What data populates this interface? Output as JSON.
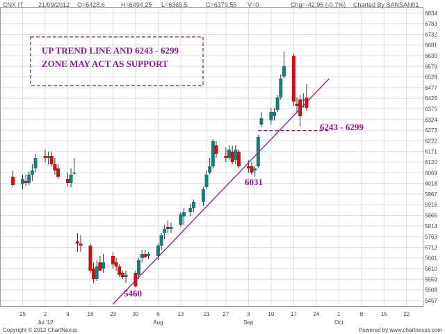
{
  "header": {
    "symbol": "CNX IT",
    "date": "21/09/2012",
    "open": "O=6428.6",
    "high": "H=6494.25",
    "low": "L=6365.5",
    "close": "C=6379.55",
    "volume": "V=0",
    "change": "Chg=-42.95 (-0.7%)",
    "charted_by": "Charted By SANSAN01"
  },
  "footer": {
    "copyright": "Copyright © 2012 ChartNexus",
    "powered": "Powered by www.chartnexus.com"
  },
  "annotations": {
    "note_line1": "UP TREND LINE AND 6243 - 6299",
    "note_line2": "ZONE MAY ACT AS SUPPORT",
    "zone_label": "6243  - 6299",
    "low_label_1": "6031",
    "low_label_2": "5460"
  },
  "colors": {
    "up": "#1a7a7a",
    "down": "#cc1111",
    "annotation": "#8e1b8e",
    "grid": "#dddddd"
  },
  "chart_data": {
    "type": "candlestick",
    "title": "",
    "xlabel": "",
    "ylabel": "",
    "grid": true,
    "ylim": [
      5430,
      6860
    ],
    "y_ticks": [
      5457,
      5508,
      5559,
      5610,
      5661,
      5712,
      5763,
      5814,
      5865,
      5916,
      5967,
      6018,
      6069,
      6120,
      6171,
      6222,
      6273,
      6324,
      6375,
      6426,
      6477,
      6528,
      6579,
      6630,
      6681,
      6732,
      6783,
      6834
    ],
    "day_labels": [
      {
        "label": "25",
        "date": "2012-06-25"
      },
      {
        "label": "2",
        "date": "2012-07-02"
      },
      {
        "label": "9",
        "date": "2012-07-09"
      },
      {
        "label": "16",
        "date": "2012-07-16"
      },
      {
        "label": "23",
        "date": "2012-07-23"
      },
      {
        "label": "30",
        "date": "2012-07-30"
      },
      {
        "label": "6",
        "date": "2012-08-06"
      },
      {
        "label": "13",
        "date": "2012-08-13"
      },
      {
        "label": "21",
        "date": "2012-08-21"
      },
      {
        "label": "27",
        "date": "2012-08-27"
      },
      {
        "label": "3",
        "date": "2012-09-03"
      },
      {
        "label": "10",
        "date": "2012-09-10"
      },
      {
        "label": "17",
        "date": "2012-09-17"
      },
      {
        "label": "24",
        "date": "2012-09-24"
      },
      {
        "label": "1",
        "date": "2012-10-01"
      },
      {
        "label": "8",
        "date": "2012-10-08"
      },
      {
        "label": "15",
        "date": "2012-10-15"
      },
      {
        "label": "22",
        "date": "2012-10-22"
      }
    ],
    "month_labels": [
      {
        "label": "Jul '12",
        "date": "2012-07-02"
      },
      {
        "label": "Aug",
        "date": "2012-08-06"
      },
      {
        "label": "Sep",
        "date": "2012-09-03"
      },
      {
        "label": "Oct",
        "date": "2012-10-01"
      }
    ],
    "candles": [
      {
        "date": "2012-06-22",
        "o": 6050,
        "h": 6080,
        "l": 6000,
        "c": 6010
      },
      {
        "date": "2012-06-25",
        "o": 6015,
        "h": 6060,
        "l": 5990,
        "c": 6040
      },
      {
        "date": "2012-06-26",
        "o": 6030,
        "h": 6060,
        "l": 6005,
        "c": 6020
      },
      {
        "date": "2012-06-27",
        "o": 6020,
        "h": 6075,
        "l": 6010,
        "c": 6060
      },
      {
        "date": "2012-06-28",
        "o": 6060,
        "h": 6110,
        "l": 6030,
        "c": 6080
      },
      {
        "date": "2012-06-29",
        "o": 6090,
        "h": 6160,
        "l": 6070,
        "c": 6140
      },
      {
        "date": "2012-07-02",
        "o": 6150,
        "h": 6180,
        "l": 6120,
        "c": 6140
      },
      {
        "date": "2012-07-03",
        "o": 6140,
        "h": 6170,
        "l": 6110,
        "c": 6150
      },
      {
        "date": "2012-07-04",
        "o": 6150,
        "h": 6170,
        "l": 6100,
        "c": 6110
      },
      {
        "date": "2012-07-05",
        "o": 6110,
        "h": 6140,
        "l": 6060,
        "c": 6080
      },
      {
        "date": "2012-07-06",
        "o": 6090,
        "h": 6110,
        "l": 6040,
        "c": 6050
      },
      {
        "date": "2012-07-09",
        "o": 6040,
        "h": 6070,
        "l": 6005,
        "c": 6020
      },
      {
        "date": "2012-07-10",
        "o": 6020,
        "h": 6090,
        "l": 6000,
        "c": 6060
      },
      {
        "date": "2012-07-11",
        "o": 6070,
        "h": 6140,
        "l": 6060,
        "c": 6070
      },
      {
        "date": "2012-07-12",
        "o": 5740,
        "h": 5780,
        "l": 5690,
        "c": 5730
      },
      {
        "date": "2012-07-13",
        "o": 5730,
        "h": 5770,
        "l": 5690,
        "c": 5720
      },
      {
        "date": "2012-07-16",
        "o": 5720,
        "h": 5730,
        "l": 5590,
        "c": 5600
      },
      {
        "date": "2012-07-17",
        "o": 5610,
        "h": 5640,
        "l": 5540,
        "c": 5560
      },
      {
        "date": "2012-07-18",
        "o": 5560,
        "h": 5650,
        "l": 5550,
        "c": 5620
      },
      {
        "date": "2012-07-19",
        "o": 5640,
        "h": 5670,
        "l": 5600,
        "c": 5600
      },
      {
        "date": "2012-07-20",
        "o": 5610,
        "h": 5680,
        "l": 5590,
        "c": 5640
      },
      {
        "date": "2012-07-23",
        "o": 5670,
        "h": 5690,
        "l": 5610,
        "c": 5630
      },
      {
        "date": "2012-07-24",
        "o": 5640,
        "h": 5660,
        "l": 5600,
        "c": 5620
      },
      {
        "date": "2012-07-25",
        "o": 5620,
        "h": 5630,
        "l": 5570,
        "c": 5580
      },
      {
        "date": "2012-07-26",
        "o": 5590,
        "h": 5600,
        "l": 5560,
        "c": 5570
      },
      {
        "date": "2012-07-27",
        "o": 5570,
        "h": 5600,
        "l": 5540,
        "c": 5580
      },
      {
        "date": "2012-07-30",
        "o": 5590,
        "h": 5600,
        "l": 5520,
        "c": 5525
      },
      {
        "date": "2012-07-31",
        "o": 5580,
        "h": 5660,
        "l": 5560,
        "c": 5650
      },
      {
        "date": "2012-08-01",
        "o": 5660,
        "h": 5700,
        "l": 5640,
        "c": 5680
      },
      {
        "date": "2012-08-02",
        "o": 5680,
        "h": 5700,
        "l": 5660,
        "c": 5665
      },
      {
        "date": "2012-08-03",
        "o": 5670,
        "h": 5690,
        "l": 5655,
        "c": 5680
      },
      {
        "date": "2012-08-06",
        "o": 5670,
        "h": 5730,
        "l": 5650,
        "c": 5720
      },
      {
        "date": "2012-08-07",
        "o": 5720,
        "h": 5780,
        "l": 5700,
        "c": 5770
      },
      {
        "date": "2012-08-08",
        "o": 5780,
        "h": 5820,
        "l": 5750,
        "c": 5800
      },
      {
        "date": "2012-08-09",
        "o": 5810,
        "h": 5840,
        "l": 5780,
        "c": 5800
      },
      {
        "date": "2012-08-10",
        "o": 5800,
        "h": 5830,
        "l": 5780,
        "c": 5810
      },
      {
        "date": "2012-08-13",
        "o": 5820,
        "h": 5880,
        "l": 5810,
        "c": 5870
      },
      {
        "date": "2012-08-14",
        "o": 5860,
        "h": 5900,
        "l": 5820,
        "c": 5880
      },
      {
        "date": "2012-08-16",
        "o": 5880,
        "h": 5920,
        "l": 5860,
        "c": 5900
      },
      {
        "date": "2012-08-17",
        "o": 5900,
        "h": 5940,
        "l": 5880,
        "c": 5930
      },
      {
        "date": "2012-08-20",
        "o": 5930,
        "h": 6000,
        "l": 5910,
        "c": 5990
      },
      {
        "date": "2012-08-21",
        "o": 6000,
        "h": 6080,
        "l": 5990,
        "c": 6060
      },
      {
        "date": "2012-08-22",
        "o": 6070,
        "h": 6140,
        "l": 6060,
        "c": 6100
      },
      {
        "date": "2012-08-23",
        "o": 6100,
        "h": 6230,
        "l": 6090,
        "c": 6220
      },
      {
        "date": "2012-08-24",
        "o": 6200,
        "h": 6220,
        "l": 6140,
        "c": 6160
      },
      {
        "date": "2012-08-27",
        "o": 6150,
        "h": 6190,
        "l": 6120,
        "c": 6140
      },
      {
        "date": "2012-08-28",
        "o": 6140,
        "h": 6200,
        "l": 6130,
        "c": 6180
      },
      {
        "date": "2012-08-29",
        "o": 6170,
        "h": 6200,
        "l": 6110,
        "c": 6120
      },
      {
        "date": "2012-08-30",
        "o": 6130,
        "h": 6200,
        "l": 6110,
        "c": 6180
      },
      {
        "date": "2012-08-31",
        "o": 6170,
        "h": 6180,
        "l": 6090,
        "c": 6100
      },
      {
        "date": "2012-09-03",
        "o": 6100,
        "h": 6130,
        "l": 6070,
        "c": 6090
      },
      {
        "date": "2012-09-04",
        "o": 6100,
        "h": 6120,
        "l": 6060,
        "c": 6070
      },
      {
        "date": "2012-09-05",
        "o": 6080,
        "h": 6100,
        "l": 6050,
        "c": 6090
      },
      {
        "date": "2012-09-06",
        "o": 6100,
        "h": 6250,
        "l": 6090,
        "c": 6240
      },
      {
        "date": "2012-09-07",
        "o": 6300,
        "h": 6360,
        "l": 6290,
        "c": 6330
      },
      {
        "date": "2012-09-10",
        "o": 6320,
        "h": 6380,
        "l": 6300,
        "c": 6360
      },
      {
        "date": "2012-09-11",
        "o": 6340,
        "h": 6380,
        "l": 6320,
        "c": 6360
      },
      {
        "date": "2012-09-12",
        "o": 6370,
        "h": 6440,
        "l": 6360,
        "c": 6430
      },
      {
        "date": "2012-09-13",
        "o": 6430,
        "h": 6540,
        "l": 6420,
        "c": 6520
      },
      {
        "date": "2012-09-14",
        "o": 6530,
        "h": 6650,
        "l": 6520,
        "c": 6580
      },
      {
        "date": "2012-09-17",
        "o": 6630,
        "h": 6640,
        "l": 6390,
        "c": 6410
      },
      {
        "date": "2012-09-18",
        "o": 6400,
        "h": 6430,
        "l": 6360,
        "c": 6390
      },
      {
        "date": "2012-09-19",
        "o": 6420,
        "h": 6440,
        "l": 6290,
        "c": 6340
      },
      {
        "date": "2012-09-20",
        "o": 6420,
        "h": 6450,
        "l": 6380,
        "c": 6420
      },
      {
        "date": "2012-09-21",
        "o": 6428.6,
        "h": 6494.25,
        "l": 6365.5,
        "c": 6379.55
      }
    ],
    "trend_line": [
      {
        "date": "2012-07-23",
        "value": 5440
      },
      {
        "date": "2012-09-28",
        "value": 6520
      }
    ],
    "support_zone": {
      "low": 6243,
      "high": 6299,
      "from": "2012-09-06",
      "to": "2012-09-28"
    }
  }
}
